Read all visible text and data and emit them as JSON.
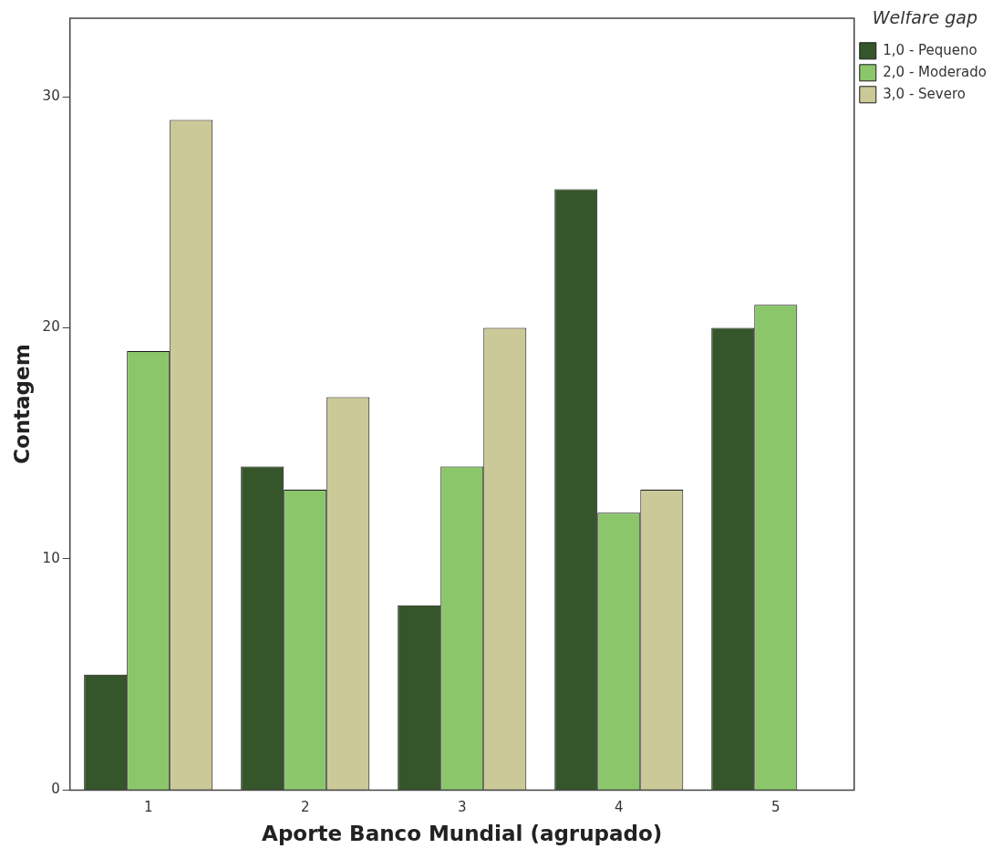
{
  "chart_data": {
    "type": "bar",
    "xlabel": "Aporte Banco Mundial (agrupado)",
    "ylabel": "Contagem",
    "legend_title": "Welfare gap",
    "categories": [
      "1",
      "2",
      "3",
      "4",
      "5"
    ],
    "series": [
      {
        "name": "1,0 - Pequeno",
        "color": "#35562a",
        "values": [
          5,
          14,
          8,
          26,
          20
        ]
      },
      {
        "name": "2,0 - Moderado",
        "color": "#8bc66b",
        "values": [
          19,
          13,
          14,
          12,
          21
        ]
      },
      {
        "name": "3,0 - Severo",
        "color": "#cbc997",
        "values": [
          29,
          17,
          20,
          13,
          null
        ]
      }
    ],
    "ylim": [
      0,
      33.4
    ],
    "yticks": [
      0,
      10,
      20,
      30
    ],
    "grid": false,
    "legend": "top right"
  }
}
